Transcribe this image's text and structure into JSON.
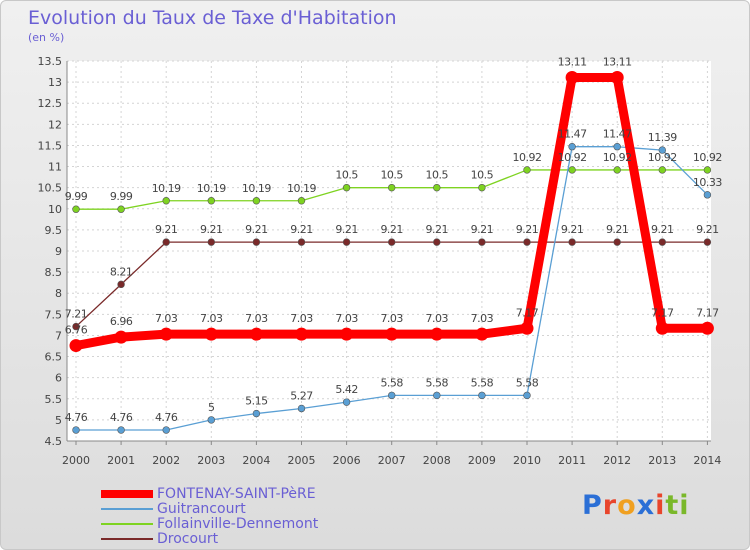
{
  "title": "Evolution du Taux de Taxe d'Habitation",
  "subtitle": "(en %)",
  "logo_text": "Proxiti",
  "chart_data": {
    "type": "line",
    "title": "Evolution du Taux de Taxe d'Habitation",
    "subtitle": "(en %)",
    "xlabel": "",
    "ylabel": "",
    "x": [
      "2000",
      "2001",
      "2002",
      "2003",
      "2004",
      "2005",
      "2006",
      "2007",
      "2008",
      "2009",
      "2010",
      "2011",
      "2012",
      "2013",
      "2014"
    ],
    "ylim": [
      4.5,
      13.5
    ],
    "yticks": [
      "4.5",
      "5",
      "5.5",
      "6",
      "6.5",
      "7",
      "7.5",
      "8",
      "8.5",
      "9",
      "9.5",
      "10",
      "10.5",
      "11",
      "11.5",
      "12",
      "12.5",
      "13",
      "13.5"
    ],
    "grid": true,
    "legend_position": "bottom-left",
    "series": [
      {
        "name": "FONTENAY-SAINT-PèRE",
        "color": "#ff0000",
        "values": [
          6.76,
          6.96,
          7.03,
          7.03,
          7.03,
          7.03,
          7.03,
          7.03,
          7.03,
          7.03,
          7.17,
          13.11,
          13.11,
          7.17,
          7.17
        ],
        "labels": [
          "6.76",
          "6.96",
          "7.03",
          "7.03",
          "7.03",
          "7.03",
          "7.03",
          "7.03",
          "7.03",
          "7.03",
          "7.17",
          "13.11",
          "13.11",
          "7.17",
          "7.17"
        ]
      },
      {
        "name": "Guitrancourt",
        "color": "#5a9fd4",
        "values": [
          4.76,
          4.76,
          4.76,
          5,
          5.15,
          5.27,
          5.42,
          5.58,
          5.58,
          5.58,
          5.58,
          11.47,
          11.47,
          11.39,
          10.33
        ],
        "labels": [
          "4.76",
          "4.76",
          "4.76",
          "5",
          "5.15",
          "5.27",
          "5.42",
          "5.58",
          "5.58",
          "5.58",
          "5.58",
          "11.47",
          "11.47",
          "11.39",
          "10.33"
        ]
      },
      {
        "name": "Follainville-Dennemont",
        "color": "#7ed321",
        "values": [
          9.99,
          9.99,
          10.19,
          10.19,
          10.19,
          10.19,
          10.5,
          10.5,
          10.5,
          10.5,
          10.92,
          10.92,
          10.92,
          10.92,
          10.92
        ],
        "labels": [
          "9.99",
          "9.99",
          "10.19",
          "10.19",
          "10.19",
          "10.19",
          "10.5",
          "10.5",
          "10.5",
          "10.5",
          "10.92",
          "10.92",
          "10.92",
          "10.92",
          "10.92"
        ]
      },
      {
        "name": "Drocourt",
        "color": "#7a2a2a",
        "values": [
          7.21,
          8.21,
          9.21,
          9.21,
          9.21,
          9.21,
          9.21,
          9.21,
          9.21,
          9.21,
          9.21,
          9.21,
          9.21,
          9.21,
          9.21
        ],
        "labels": [
          "7.21",
          "8.21",
          "9.21",
          "9.21",
          "9.21",
          "9.21",
          "9.21",
          "9.21",
          "9.21",
          "9.21",
          "9.21",
          "9.21",
          "9.21",
          "9.21",
          "9.21"
        ]
      }
    ]
  }
}
